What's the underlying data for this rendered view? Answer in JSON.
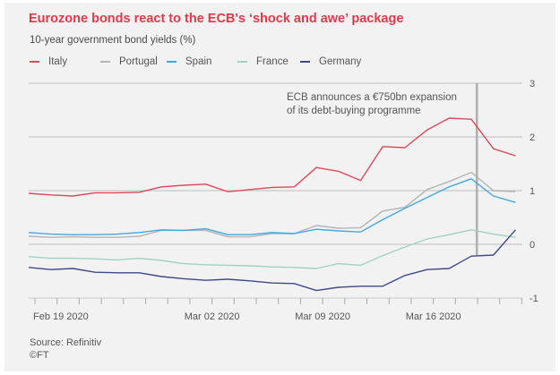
{
  "chart_data": {
    "type": "line",
    "title": "Eurozone bonds react to the ECB's ‘shock and awe’ package",
    "subtitle": "10-year government bond yields (%)",
    "xlabel": "",
    "ylabel": "",
    "ylim": [
      -1,
      3
    ],
    "yticks": [
      3,
      2,
      1,
      0,
      -1
    ],
    "ytick_labels": [
      "3",
      "2",
      "1",
      "0",
      "-1"
    ],
    "grid": true,
    "legend_position": "top-left",
    "x": [
      "Feb 19 2020",
      "Feb 20 2020",
      "Feb 21 2020",
      "Feb 24 2020",
      "Feb 25 2020",
      "Feb 26 2020",
      "Feb 27 2020",
      "Feb 28 2020",
      "Mar 02 2020",
      "Mar 03 2020",
      "Mar 04 2020",
      "Mar 05 2020",
      "Mar 06 2020",
      "Mar 09 2020",
      "Mar 10 2020",
      "Mar 11 2020",
      "Mar 12 2020",
      "Mar 13 2020",
      "Mar 16 2020",
      "Mar 17 2020",
      "Mar 18 2020",
      "Mar 19 2020",
      "Mar 20 2020"
    ],
    "xtick_labels": [
      {
        "index": 0,
        "label": "Feb 19 2020"
      },
      {
        "index": 8,
        "label": "Mar 02 2020"
      },
      {
        "index": 13,
        "label": "Mar 09 2020"
      },
      {
        "index": 18,
        "label": "Mar 16 2020"
      }
    ],
    "series": [
      {
        "name": "Italy",
        "color": "#e0485a",
        "values": [
          0.95,
          0.92,
          0.9,
          0.96,
          0.96,
          0.97,
          1.07,
          1.1,
          1.12,
          0.98,
          1.02,
          1.06,
          1.07,
          1.43,
          1.36,
          1.19,
          1.82,
          1.8,
          2.13,
          2.35,
          2.33,
          1.78,
          1.65
        ]
      },
      {
        "name": "Portugal",
        "color": "#b4b4b4",
        "values": [
          0.15,
          0.13,
          0.14,
          0.13,
          0.13,
          0.15,
          0.26,
          0.26,
          0.26,
          0.14,
          0.14,
          0.2,
          0.2,
          0.35,
          0.3,
          0.31,
          0.62,
          0.69,
          1.02,
          1.17,
          1.34,
          1.0,
          0.98
        ]
      },
      {
        "name": "Spain",
        "color": "#3fa9e0",
        "values": [
          0.22,
          0.19,
          0.18,
          0.18,
          0.19,
          0.22,
          0.27,
          0.26,
          0.29,
          0.18,
          0.18,
          0.22,
          0.2,
          0.28,
          0.25,
          0.23,
          0.46,
          0.67,
          0.87,
          1.07,
          1.22,
          0.9,
          0.78
        ]
      },
      {
        "name": "France",
        "color": "#9fd3bd",
        "values": [
          -0.23,
          -0.26,
          -0.26,
          -0.27,
          -0.29,
          -0.26,
          -0.3,
          -0.36,
          -0.38,
          -0.39,
          -0.4,
          -0.42,
          -0.43,
          -0.45,
          -0.36,
          -0.39,
          -0.21,
          -0.05,
          0.1,
          0.18,
          0.27,
          0.19,
          0.13
        ]
      },
      {
        "name": "Germany",
        "color": "#3d4a8a",
        "values": [
          -0.43,
          -0.47,
          -0.45,
          -0.52,
          -0.53,
          -0.53,
          -0.6,
          -0.64,
          -0.67,
          -0.65,
          -0.68,
          -0.72,
          -0.73,
          -0.86,
          -0.8,
          -0.78,
          -0.78,
          -0.58,
          -0.47,
          -0.45,
          -0.22,
          -0.2,
          0.27
        ]
      }
    ],
    "annotations": [
      {
        "text_lines": [
          "ECB announces a €750bn expansion",
          "of its debt-buying programme"
        ],
        "x_index": 20.25
      }
    ],
    "source": "Source: Refinitiv",
    "copyright": "©FT"
  },
  "colors": {
    "title": "#e03a4a",
    "background": "#f2f2f2",
    "gridline": "#c8c8c8",
    "marker_line": "#b0b0b0"
  }
}
